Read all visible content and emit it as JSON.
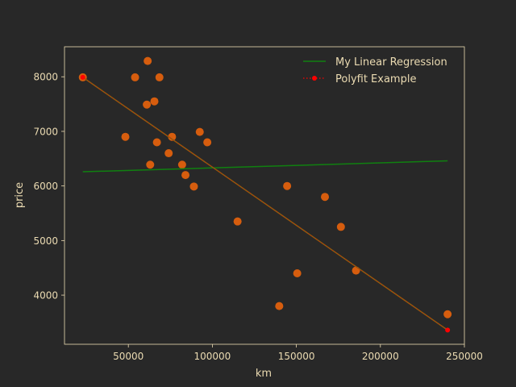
{
  "chart_data": {
    "type": "scatter",
    "xlabel": "km",
    "ylabel": "price",
    "xlim": [
      12000,
      250000
    ],
    "ylim": [
      3100,
      8550
    ],
    "xticks": [
      50000,
      100000,
      150000,
      200000,
      250000
    ],
    "yticks": [
      4000,
      5000,
      6000,
      7000,
      8000
    ],
    "grid": false,
    "legend_position": "top-right",
    "points": [
      {
        "x": 22899,
        "y": 7990
      },
      {
        "x": 48235,
        "y": 6900
      },
      {
        "x": 54000,
        "y": 7990
      },
      {
        "x": 61000,
        "y": 7490
      },
      {
        "x": 61500,
        "y": 8290
      },
      {
        "x": 63000,
        "y": 6390
      },
      {
        "x": 65500,
        "y": 7550
      },
      {
        "x": 67000,
        "y": 6800
      },
      {
        "x": 68500,
        "y": 7990
      },
      {
        "x": 74000,
        "y": 6600
      },
      {
        "x": 76000,
        "y": 6900
      },
      {
        "x": 82000,
        "y": 6390
      },
      {
        "x": 84000,
        "y": 6200
      },
      {
        "x": 89000,
        "y": 5990
      },
      {
        "x": 92500,
        "y": 6990
      },
      {
        "x": 97000,
        "y": 6800
      },
      {
        "x": 115000,
        "y": 5350
      },
      {
        "x": 139800,
        "y": 3800
      },
      {
        "x": 144500,
        "y": 5999
      },
      {
        "x": 150500,
        "y": 4400
      },
      {
        "x": 167000,
        "y": 5800
      },
      {
        "x": 176500,
        "y": 5250
      },
      {
        "x": 185500,
        "y": 4450
      },
      {
        "x": 240000,
        "y": 3650
      }
    ],
    "series": [
      {
        "name": "My Linear Regression",
        "kind": "line",
        "color": "#108010",
        "x": [
          22899,
          240000
        ],
        "y": [
          6260,
          6460
        ]
      },
      {
        "name": "Polyfit Example",
        "kind": "dotted-line-with-markers",
        "color": "#ff0000",
        "x": [
          22899,
          240000
        ],
        "y": [
          7990,
          3360
        ]
      }
    ],
    "colors": {
      "background": "#282828",
      "axes_edge": "#ebdbb2",
      "text": "#ebdbb2",
      "scatter": "#d65d0e",
      "fit_overlay": "#8a6010"
    }
  }
}
